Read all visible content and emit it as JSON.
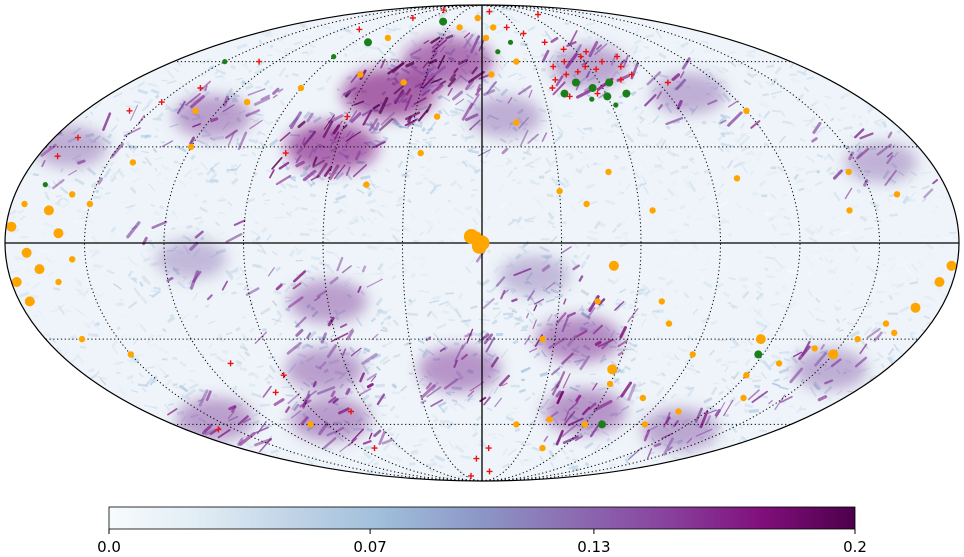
{
  "projection": "mollweide",
  "graticule": {
    "parallels_deg": [
      -60,
      -30,
      0,
      30,
      60
    ],
    "meridians_deg": [
      -150,
      -120,
      -90,
      -60,
      -30,
      0,
      30,
      60,
      90,
      120,
      150
    ],
    "style": "dotted",
    "solid_lines": [
      "equator",
      "central-meridian"
    ]
  },
  "colormap": {
    "name": "BuPu",
    "stops": [
      "#f7fcfd",
      "#e0ecf4",
      "#bfd3e6",
      "#9ebcda",
      "#8c96c6",
      "#8c6bb1",
      "#88419d",
      "#810f7c",
      "#4d004b"
    ]
  },
  "colorbar": {
    "min": 0.0,
    "max": 0.2,
    "ticks": [
      {
        "value": 0.0,
        "label": "0.0"
      },
      {
        "value": 0.07,
        "label": "0.07"
      },
      {
        "value": 0.13,
        "label": "0.13"
      },
      {
        "value": 0.2,
        "label": "0.2"
      }
    ]
  },
  "marker_colors": {
    "orange_circle": "#ffa500",
    "green_circle": "#1a7f1a",
    "red_plus": "#ee1111"
  },
  "features": {
    "enhanced_regions": [
      {
        "lon": 45,
        "lat": 48,
        "level": 0.95
      },
      {
        "lon": 62,
        "lat": 30,
        "level": 0.9
      },
      {
        "lon": 20,
        "lat": 60,
        "level": 0.85
      },
      {
        "lon": -60,
        "lat": 58,
        "level": 0.5
      },
      {
        "lon": -10,
        "lat": 40,
        "level": 0.45
      },
      {
        "lon": 120,
        "lat": 40,
        "level": 0.55
      },
      {
        "lon": 170,
        "lat": 30,
        "level": 0.45
      },
      {
        "lon": -40,
        "lat": -30,
        "level": 0.7
      },
      {
        "lon": -55,
        "lat": -55,
        "level": 0.65
      },
      {
        "lon": 10,
        "lat": -40,
        "level": 0.65
      },
      {
        "lon": 60,
        "lat": -18,
        "level": 0.55
      },
      {
        "lon": 70,
        "lat": -40,
        "level": 0.55
      },
      {
        "lon": 85,
        "lat": -58,
        "level": 0.6
      },
      {
        "lon": -120,
        "lat": -62,
        "level": 0.5
      },
      {
        "lon": -100,
        "lat": 48,
        "level": 0.45
      },
      {
        "lon": 150,
        "lat": -58,
        "level": 0.55
      },
      {
        "lon": -160,
        "lat": 25,
        "level": 0.4
      },
      {
        "lon": -155,
        "lat": -40,
        "level": 0.45
      },
      {
        "lon": 110,
        "lat": -5,
        "level": 0.35
      },
      {
        "lon": -20,
        "lat": -10,
        "level": 0.35
      }
    ],
    "orange_circles": [
      {
        "lon": 4,
        "lat": 2,
        "size": 3
      },
      {
        "lon": 0,
        "lat": 0,
        "size": 3
      },
      {
        "lon": 1,
        "lat": -1,
        "size": 3
      },
      {
        "lon": 2,
        "lat": 2,
        "size": 2
      },
      {
        "lon": 178,
        "lat": 5,
        "size": 2
      },
      {
        "lon": 165,
        "lat": 10,
        "size": 2
      },
      {
        "lon": 172,
        "lat": -3,
        "size": 2
      },
      {
        "lon": 160,
        "lat": 3,
        "size": 2
      },
      {
        "lon": 168,
        "lat": -8,
        "size": 2
      },
      {
        "lon": 175,
        "lat": 12,
        "size": 1
      },
      {
        "lon": 158,
        "lat": 15,
        "size": 1
      },
      {
        "lon": 155,
        "lat": -5,
        "size": 1
      },
      {
        "lon": 162,
        "lat": -12,
        "size": 1
      },
      {
        "lon": 178,
        "lat": -12,
        "size": 2
      },
      {
        "lon": 176,
        "lat": -18,
        "size": 2
      },
      {
        "lon": 150,
        "lat": 12,
        "size": 1
      },
      {
        "lon": -178,
        "lat": -7,
        "size": 2
      },
      {
        "lon": -175,
        "lat": -12,
        "size": 2
      },
      {
        "lon": -170,
        "lat": -20,
        "size": 2
      },
      {
        "lon": -168,
        "lat": -28,
        "size": 1
      },
      {
        "lon": -162,
        "lat": -25,
        "size": 1
      },
      {
        "lon": -155,
        "lat": -30,
        "size": 1
      },
      {
        "lon": -150,
        "lat": -35,
        "size": 2
      },
      {
        "lon": -140,
        "lat": -33,
        "size": 1
      },
      {
        "lon": -130,
        "lat": -38,
        "size": 1
      },
      {
        "lon": -120,
        "lat": -42,
        "size": 1
      },
      {
        "lon": -115,
        "lat": -30,
        "size": 2
      },
      {
        "lon": -130,
        "lat": -50,
        "size": 1
      },
      {
        "lon": -105,
        "lat": -55,
        "size": 1
      },
      {
        "lon": -90,
        "lat": -35,
        "size": 1
      },
      {
        "lon": -95,
        "lat": -60,
        "size": 1
      },
      {
        "lon": -80,
        "lat": -50,
        "size": 1
      },
      {
        "lon": -60,
        "lat": -45,
        "size": 1
      },
      {
        "lon": -60,
        "lat": -60,
        "size": 1
      },
      {
        "lon": -45,
        "lat": -70,
        "size": 1
      },
      {
        "lon": -38,
        "lat": -58,
        "size": 1
      },
      {
        "lon": -70,
        "lat": -18,
        "size": 1
      },
      {
        "lon": -50,
        "lat": -7,
        "size": 2
      },
      {
        "lon": -65,
        "lat": 10,
        "size": 1
      },
      {
        "lon": -40,
        "lat": 12,
        "size": 1
      },
      {
        "lon": -30,
        "lat": 16,
        "size": 1
      },
      {
        "lon": -50,
        "lat": 22,
        "size": 1
      },
      {
        "lon": -15,
        "lat": 38,
        "size": 1
      },
      {
        "lon": -5,
        "lat": 55,
        "size": 1
      },
      {
        "lon": -3,
        "lat": 70,
        "size": 1
      },
      {
        "lon": 5,
        "lat": 80,
        "size": 1
      },
      {
        "lon": 20,
        "lat": 40,
        "size": 1
      },
      {
        "lon": 40,
        "lat": 52,
        "size": 1
      },
      {
        "lon": 25,
        "lat": 28,
        "size": 1
      },
      {
        "lon": 45,
        "lat": 18,
        "size": 1
      },
      {
        "lon": 65,
        "lat": 55,
        "size": 1
      },
      {
        "lon": 90,
        "lat": 50,
        "size": 1
      },
      {
        "lon": 110,
        "lat": 45,
        "size": 1
      },
      {
        "lon": 130,
        "lat": 42,
        "size": 1
      },
      {
        "lon": 120,
        "lat": 30,
        "size": 1
      },
      {
        "lon": 140,
        "lat": 25,
        "size": 1
      },
      {
        "lon": -100,
        "lat": 20,
        "size": 1
      },
      {
        "lon": -160,
        "lat": 15,
        "size": 1
      },
      {
        "lon": -120,
        "lat": 42,
        "size": 1
      },
      {
        "lon": -140,
        "lat": 10,
        "size": 1
      },
      {
        "lon": -145,
        "lat": 22,
        "size": 1
      },
      {
        "lon": -10,
        "lat": 75,
        "size": 1
      },
      {
        "lon": 100,
        "lat": -60,
        "size": 1
      },
      {
        "lon": 150,
        "lat": -35,
        "size": 1
      },
      {
        "lon": -25,
        "lat": -30,
        "size": 1
      },
      {
        "lon": -45,
        "lat": -18,
        "size": 1
      },
      {
        "lon": -58,
        "lat": -40,
        "size": 2
      },
      {
        "lon": -20,
        "lat": -60,
        "size": 1
      },
      {
        "lon": 20,
        "lat": 75,
        "size": 1
      },
      {
        "lon": 70,
        "lat": 70,
        "size": 1
      },
      {
        "lon": -20,
        "lat": 60,
        "size": 1
      },
      {
        "lon": -75,
        "lat": -25,
        "size": 1
      },
      {
        "lon": 165,
        "lat": -30,
        "size": 1
      }
    ],
    "green_circles": [
      {
        "lon": -70,
        "lat": 48,
        "size": 2
      },
      {
        "lon": -65,
        "lat": 52,
        "size": 2
      },
      {
        "lon": -60,
        "lat": 47,
        "size": 2
      },
      {
        "lon": -55,
        "lat": 50,
        "size": 2
      },
      {
        "lon": -48,
        "lat": 52,
        "size": 2
      },
      {
        "lon": -40,
        "lat": 48,
        "size": 2
      },
      {
        "lon": -62,
        "lat": 44,
        "size": 1
      },
      {
        "lon": -52,
        "lat": 46,
        "size": 1
      },
      {
        "lon": -20,
        "lat": 68,
        "size": 1
      },
      {
        "lon": -10,
        "lat": 64,
        "size": 1
      },
      {
        "lon": 40,
        "lat": 78,
        "size": 2
      },
      {
        "lon": 80,
        "lat": 68,
        "size": 2
      },
      {
        "lon": 90,
        "lat": 62,
        "size": 1
      },
      {
        "lon": 150,
        "lat": 60,
        "size": 1
      },
      {
        "lon": 170,
        "lat": 18,
        "size": 1
      },
      {
        "lon": -118,
        "lat": -35,
        "size": 2
      },
      {
        "lon": -70,
        "lat": -60,
        "size": 2
      }
    ],
    "red_plus": [
      {
        "lon": -75,
        "lat": 82
      },
      {
        "lon": -82,
        "lat": 62
      },
      {
        "lon": -78,
        "lat": 58
      },
      {
        "lon": -70,
        "lat": 60
      },
      {
        "lon": -63,
        "lat": 57
      },
      {
        "lon": -60,
        "lat": 62
      },
      {
        "lon": -58,
        "lat": 58
      },
      {
        "lon": -52,
        "lat": 56
      },
      {
        "lon": -48,
        "lat": 60
      },
      {
        "lon": -45,
        "lat": 55
      },
      {
        "lon": -40,
        "lat": 58
      },
      {
        "lon": -38,
        "lat": 53
      },
      {
        "lon": -35,
        "lat": 50
      },
      {
        "lon": -72,
        "lat": 53
      },
      {
        "lon": -80,
        "lat": 55
      },
      {
        "lon": -66,
        "lat": 64
      },
      {
        "lon": -53,
        "lat": 65
      },
      {
        "lon": -44,
        "lat": 68
      },
      {
        "lon": -33,
        "lat": 72
      },
      {
        "lon": -22,
        "lat": 75
      },
      {
        "lon": -95,
        "lat": 52
      },
      {
        "lon": -56,
        "lat": 48
      },
      {
        "lon": -42,
        "lat": 47
      },
      {
        "lon": -12,
        "lat": 84
      },
      {
        "lon": 70,
        "lat": 85
      },
      {
        "lon": 80,
        "lat": 80
      },
      {
        "lon": 105,
        "lat": 74
      },
      {
        "lon": 130,
        "lat": 60
      },
      {
        "lon": 140,
        "lat": 50
      },
      {
        "lon": 150,
        "lat": 45
      },
      {
        "lon": 160,
        "lat": 42
      },
      {
        "lon": 170,
        "lat": 33
      },
      {
        "lon": 172,
        "lat": 27
      },
      {
        "lon": 60,
        "lat": 40
      },
      {
        "lon": 80,
        "lat": 28
      },
      {
        "lon": -10,
        "lat": -82
      },
      {
        "lon": -5,
        "lat": -70
      },
      {
        "lon": 5,
        "lat": -75
      },
      {
        "lon": 20,
        "lat": -85
      },
      {
        "lon": 70,
        "lat": -55
      },
      {
        "lon": 80,
        "lat": -70
      },
      {
        "lon": 90,
        "lat": -42
      },
      {
        "lon": 100,
        "lat": -48
      },
      {
        "lon": 110,
        "lat": -38
      },
      {
        "lon": 160,
        "lat": -62
      }
    ]
  }
}
